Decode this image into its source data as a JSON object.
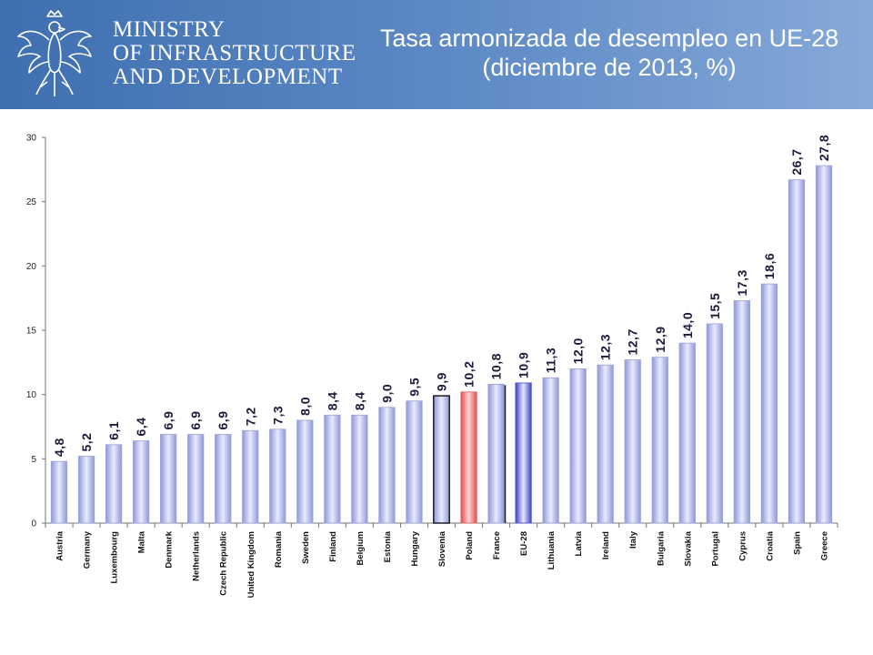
{
  "header": {
    "ministry_lines": [
      "MINISTRY",
      "OF INFRASTRUCTURE",
      "AND DEVELOPMENT"
    ],
    "title_line1": "Tasa armonizada de desempleo en UE-28",
    "title_line2": "(diciembre de 2013, %)",
    "emblem_icon": "white-eagle-icon",
    "background_color": "#4a78b8"
  },
  "chart_data": {
    "type": "bar",
    "categories": [
      "Austria",
      "Germany",
      "Luxembourg",
      "Malta",
      "Denmark",
      "Netherlands",
      "Czech Republic",
      "United Kingdom",
      "Romania",
      "Sweden",
      "Finland",
      "Belgium",
      "Estonia",
      "Hungary",
      "Slovenia",
      "Poland",
      "France",
      "EU-28",
      "Lithuania",
      "Latvia",
      "Ireland",
      "Italy",
      "Bulgaria",
      "Slovakia",
      "Portugal",
      "Cyprus",
      "Croatia",
      "Spain",
      "Greece"
    ],
    "values": [
      4.8,
      5.2,
      6.1,
      6.4,
      6.9,
      6.9,
      6.9,
      7.2,
      7.3,
      8.0,
      8.4,
      8.4,
      9.0,
      9.5,
      9.9,
      10.2,
      10.8,
      10.9,
      11.3,
      12.0,
      12.3,
      12.7,
      12.9,
      14.0,
      15.5,
      17.3,
      18.6,
      26.7,
      27.8
    ],
    "value_labels": [
      "4,8",
      "5,2",
      "6,1",
      "6,4",
      "6,9",
      "6,9",
      "6,9",
      "7,2",
      "7,3",
      "8,0",
      "8,4",
      "8,4",
      "9,0",
      "9,5",
      "9,9",
      "10,2",
      "10,8",
      "10,9",
      "11,3",
      "12,0",
      "12,3",
      "12,7",
      "12,9",
      "14,0",
      "15,5",
      "17,3",
      "18,6",
      "26,7",
      "27,8"
    ],
    "ylim": [
      0,
      30
    ],
    "yticks": [
      0,
      5,
      10,
      15,
      20,
      25,
      30
    ],
    "grid": false,
    "legend": "none",
    "colors": {
      "default": "#b4bdea",
      "poland": "#f08a8a",
      "eu28": "#6d74d8",
      "label": "#1a1a3a"
    },
    "highlight": {
      "Slovenia": "outlined",
      "Poland": "red",
      "France": "shadow",
      "EU-28": "blue"
    }
  }
}
